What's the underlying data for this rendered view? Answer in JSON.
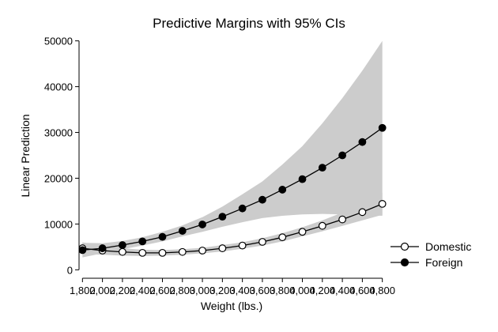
{
  "chart_data": {
    "type": "line",
    "title": "Predictive Margins with 95% CIs",
    "xlabel": "Weight (lbs.)",
    "ylabel": "Linear Prediction",
    "x": [
      1800,
      2000,
      2200,
      2400,
      2600,
      2800,
      3000,
      3200,
      3400,
      3600,
      3800,
      4000,
      4200,
      4400,
      4600,
      4800
    ],
    "x_tick_labels": [
      "1,800",
      "2,000",
      "2,200",
      "2,400",
      "2,600",
      "2,800",
      "3,000",
      "3,200",
      "3,400",
      "3,600",
      "3,800",
      "4,000",
      "4,200",
      "4,400",
      "4,600",
      "4,800"
    ],
    "y_ticks": [
      0,
      10000,
      20000,
      30000,
      40000,
      50000
    ],
    "y_tick_labels": [
      "0",
      "10000",
      "20000",
      "30000",
      "40000",
      "50000"
    ],
    "xlim": [
      1750,
      4850
    ],
    "ylim": [
      -1500,
      51500
    ],
    "grid": false,
    "legend_position": "right",
    "series": [
      {
        "name": "Domestic",
        "marker": "hollow-circle",
        "values": [
          4700,
          4200,
          3900,
          3700,
          3700,
          3900,
          4200,
          4700,
          5300,
          6100,
          7100,
          8300,
          9600,
          11000,
          12600,
          14400
        ],
        "ci_lower": [
          3400,
          3300,
          3100,
          3000,
          3100,
          3300,
          3600,
          4000,
          4600,
          5300,
          6200,
          7300,
          8400,
          9600,
          10800,
          12000
        ],
        "ci_upper": [
          6000,
          5100,
          4700,
          4400,
          4300,
          4500,
          4800,
          5400,
          6000,
          6900,
          8000,
          9300,
          10800,
          12500,
          14400,
          16800
        ]
      },
      {
        "name": "Foreign",
        "marker": "filled-circle",
        "values": [
          4300,
          4700,
          5400,
          6200,
          7200,
          8500,
          9900,
          11600,
          13400,
          15300,
          17500,
          19800,
          22300,
          25000,
          27900,
          31000
        ],
        "ci_lower": [
          2700,
          3600,
          4500,
          5300,
          6200,
          7300,
          8300,
          9400,
          10400,
          11300,
          11800,
          12100,
          12200,
          12100,
          12000,
          11800
        ],
        "ci_upper": [
          5900,
          5800,
          6300,
          7100,
          8300,
          9700,
          11500,
          13800,
          16500,
          19300,
          23000,
          27000,
          32000,
          37500,
          43500,
          50000
        ]
      }
    ],
    "ci_color": "#cccccc",
    "line_color": "#000000"
  }
}
